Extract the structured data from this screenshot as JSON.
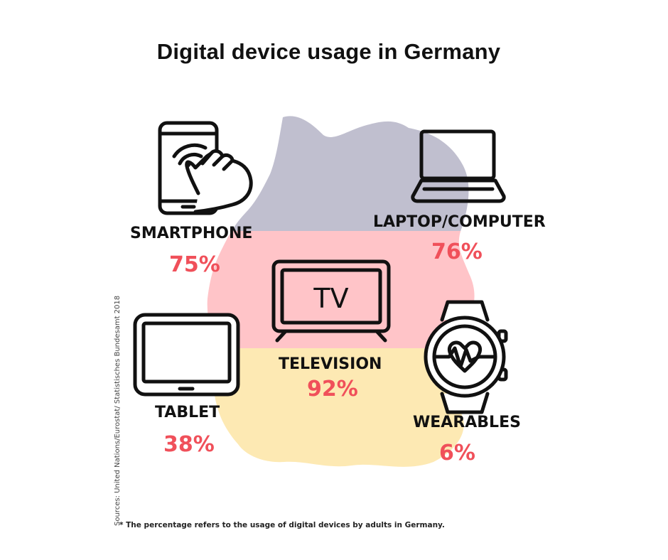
{
  "title": "Digital device usage in Germany",
  "colors": {
    "percent": "#f0505a",
    "flag_top": "#c0bfcf",
    "flag_middle": "#ffc4c8",
    "flag_bottom": "#fde9b3",
    "icon_stroke": "#111111"
  },
  "devices": [
    {
      "label": "SMARTPHONE",
      "percent": "75%",
      "icon": "smartphone-touch-icon"
    },
    {
      "label": "LAPTOP/COMPUTER",
      "percent": "76%",
      "icon": "laptop-icon"
    },
    {
      "label": "TELEVISION",
      "percent": "92%",
      "icon": "television-icon",
      "icon_text": "TV"
    },
    {
      "label": "TABLET",
      "percent": "38%",
      "icon": "tablet-icon"
    },
    {
      "label": "WEARABLES",
      "percent": "6%",
      "icon": "smartwatch-heart-icon"
    }
  ],
  "source": "Sources: United Nations/Eurostat/ Statistisches Bundesamt 2018",
  "footnote": "* The percentage refers to the  usage of digital devices by adults in Germany."
}
